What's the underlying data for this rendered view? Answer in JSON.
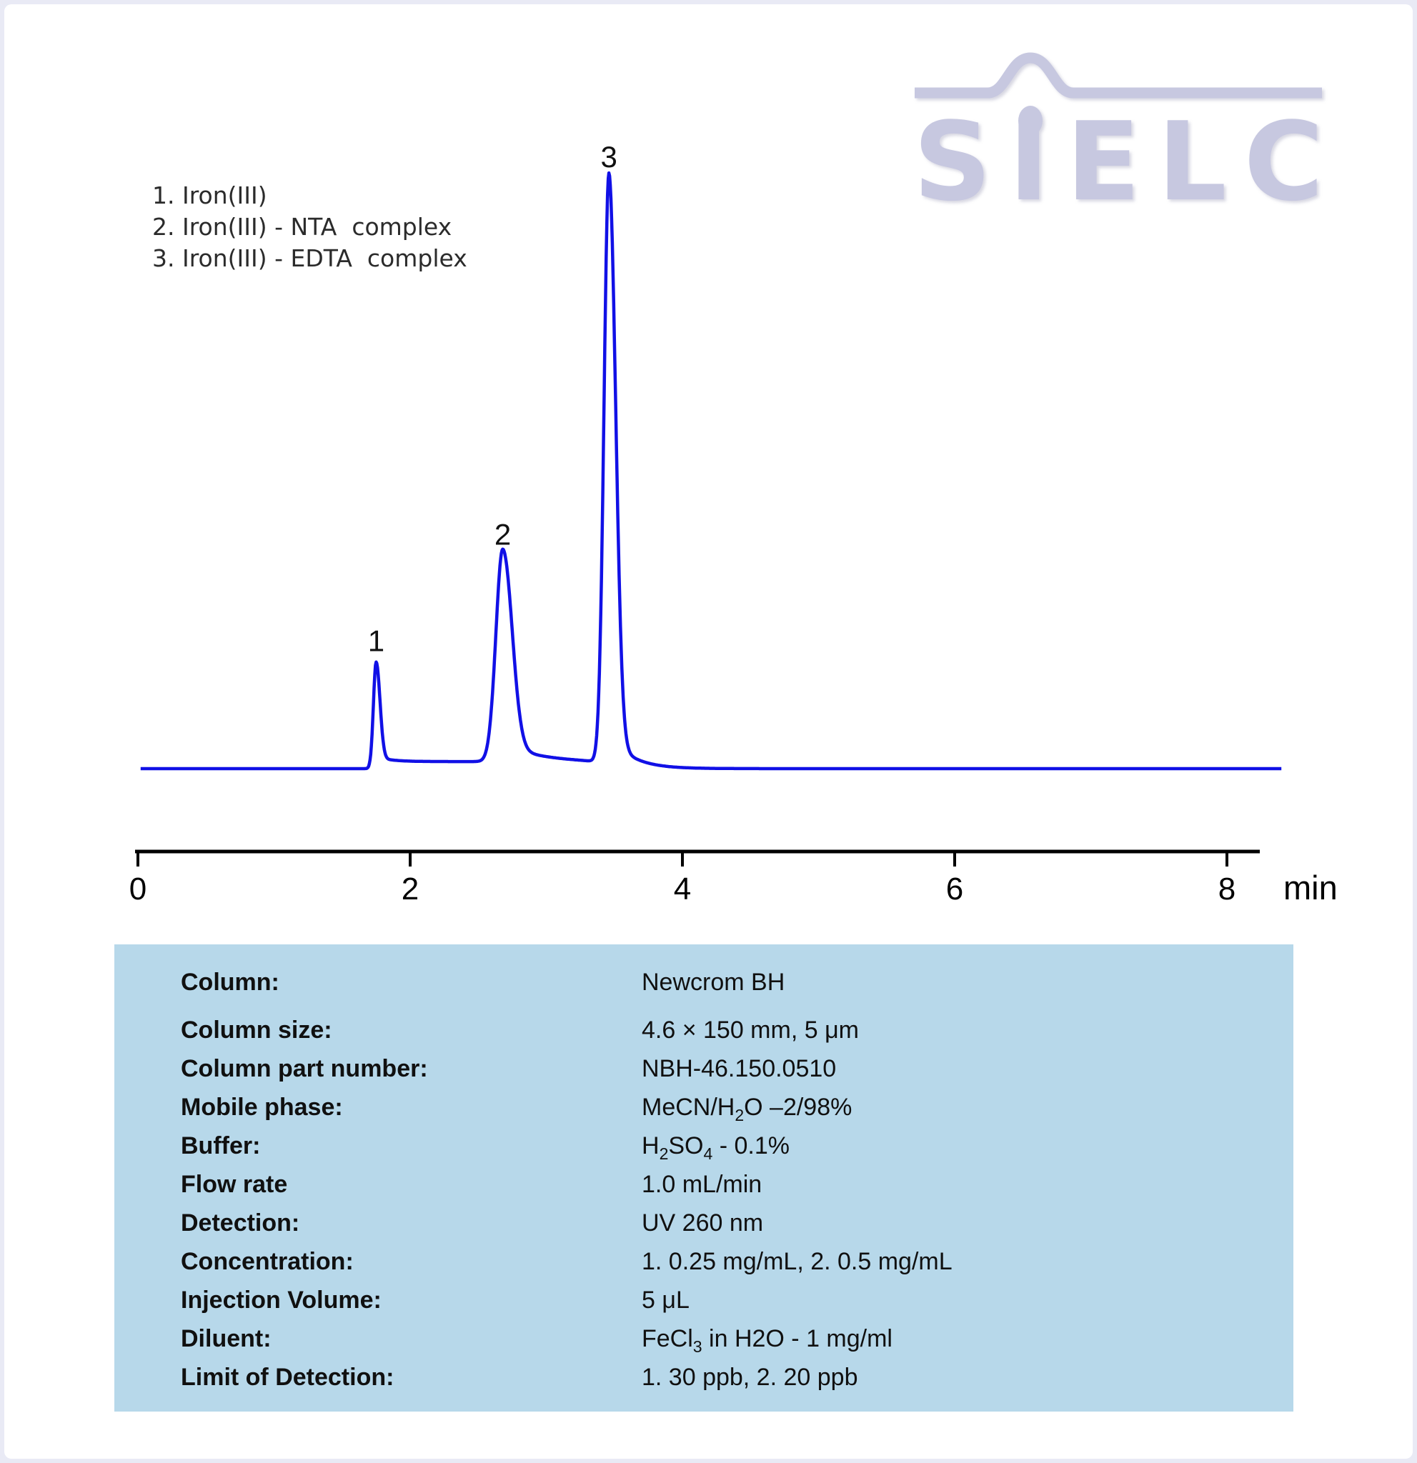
{
  "logo": {
    "text": "SIELC",
    "color": "#c7c8e0"
  },
  "legend": {
    "items": [
      "1. Iron(III)",
      "2. Iron(III) - NTA  complex",
      "3. Iron(III) - EDTA  complex"
    ]
  },
  "chart_data": {
    "type": "line",
    "title": "HPLC chromatogram of Iron(III) and its NTA / EDTA complexes",
    "xlabel": "min",
    "ylabel": "",
    "x_ticks": [
      0,
      2,
      4,
      6,
      8
    ],
    "xlim": [
      0,
      8.4
    ],
    "ylim": [
      0,
      1.12
    ],
    "grid": false,
    "legend_position": "top-left",
    "trace_color": "#1110e6",
    "axis_color": "#000000",
    "peaks": [
      {
        "label": "1",
        "compound": "Iron(III)",
        "retention_min": 1.75,
        "rel_height": 0.18,
        "sigma_left_min": 0.02,
        "sigma_right_min": 0.028,
        "tail_amp": 0.05,
        "tail_tau_min": 0.1
      },
      {
        "label": "2",
        "compound": "Iron(III) - NTA complex",
        "retention_min": 2.68,
        "rel_height": 0.36,
        "sigma_left_min": 0.05,
        "sigma_right_min": 0.066,
        "tail_amp": 0.09,
        "tail_tau_min": 0.24
      },
      {
        "label": "3",
        "compound": "Iron(III) - EDTA complex",
        "retention_min": 3.46,
        "rel_height": 1.0,
        "sigma_left_min": 0.036,
        "sigma_right_min": 0.048,
        "tail_amp": 0.045,
        "tail_tau_min": 0.16
      }
    ],
    "baseline": {
      "t_start": 0.02,
      "t_end": 8.4,
      "shelf": {
        "from_min": 1.79,
        "to_min": 3.55,
        "amp": 0.012
      }
    }
  },
  "table": {
    "rows": [
      {
        "label": "Column:",
        "value": [
          {
            "t": "Newcrom BH"
          }
        ]
      },
      {
        "label": "Column size:",
        "value": [
          {
            "t": "4.6 × 150 mm, 5 μm"
          }
        ]
      },
      {
        "label": "Column part number:",
        "value": [
          {
            "t": "NBH-46.150.0510"
          }
        ]
      },
      {
        "label": "Mobile phase:",
        "value": [
          {
            "t": "MeCN/H"
          },
          {
            "t": "2",
            "sub": true
          },
          {
            "t": "O –2/98%"
          }
        ]
      },
      {
        "label": "Buffer:",
        "value": [
          {
            "t": "H"
          },
          {
            "t": "2",
            "sub": true
          },
          {
            "t": "SO"
          },
          {
            "t": "4",
            "sub": true
          },
          {
            "t": " - 0.1%"
          }
        ]
      },
      {
        "label": "Flow rate",
        "value": [
          {
            "t": "1.0 mL/min"
          }
        ]
      },
      {
        "label": "Detection:",
        "value": [
          {
            "t": "UV 260 nm"
          }
        ]
      },
      {
        "label": "Concentration:",
        "value": [
          {
            "t": "1. 0.25 mg/mL, 2. 0.5 mg/mL"
          }
        ]
      },
      {
        "label": "Injection Volume:",
        "value": [
          {
            "t": "5 μL"
          }
        ]
      },
      {
        "label": "Diluent:",
        "value": [
          {
            "t": "FeCl"
          },
          {
            "t": "3",
            "sub": true
          },
          {
            "t": " in H2O - 1 mg/ml"
          }
        ]
      },
      {
        "label": "Limit of Detection:",
        "value": [
          {
            "t": "1. 30 ppb, 2. 20 ppb"
          }
        ]
      }
    ]
  }
}
